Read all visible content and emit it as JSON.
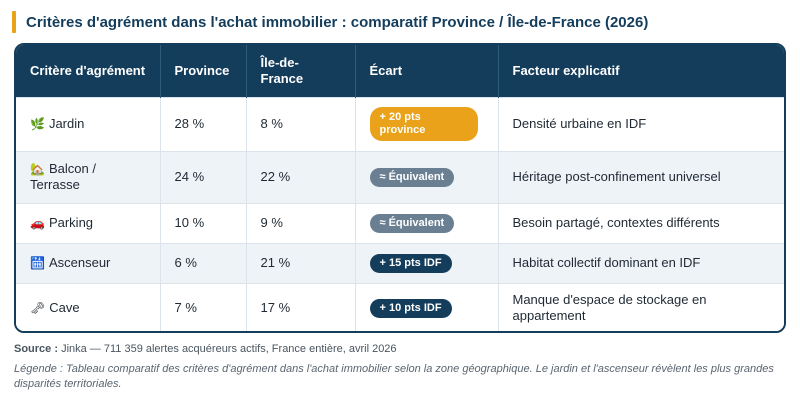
{
  "title": "Critères d'agrément dans l'achat immobilier : comparatif Province / Île-de-France (2026)",
  "headers": {
    "criterion": "Critère d'agrément",
    "province": "Province",
    "idf": "Île-de-France",
    "gap": "Écart",
    "factor": "Facteur explicatif"
  },
  "rows": [
    {
      "icon": "🌿",
      "icon_name": "herb-icon",
      "criterion": "Jardin",
      "province": "28 %",
      "idf": "8 %",
      "gap": "+ 20 pts province",
      "gap_color": "#e9a21a",
      "factor": "Densité urbaine en IDF"
    },
    {
      "icon": "🏡",
      "icon_name": "house-garden-icon",
      "criterion": "Balcon / Terrasse",
      "province": "24 %",
      "idf": "22 %",
      "gap": "≈ Équivalent",
      "gap_color": "#6a7f92",
      "factor": "Héritage post-confinement universel"
    },
    {
      "icon": "🚗",
      "icon_name": "car-icon",
      "criterion": "Parking",
      "province": "10 %",
      "idf": "9 %",
      "gap": "≈ Équivalent",
      "gap_color": "#6a7f92",
      "factor": "Besoin partagé, contextes différents"
    },
    {
      "icon": "🛗",
      "icon_name": "elevator-icon",
      "criterion": "Ascenseur",
      "province": "6 %",
      "idf": "21 %",
      "gap": "+ 15 pts IDF",
      "gap_color": "#143d5c",
      "factor": "Habitat collectif dominant en IDF"
    },
    {
      "icon": "🗝",
      "icon_name": "key-icon",
      "criterion": "Cave",
      "province": "7 %",
      "idf": "17 %",
      "gap": "+ 10 pts IDF",
      "gap_color": "#143d5c",
      "factor": "Manque d'espace de stockage en appartement"
    }
  ],
  "source_label": "Source :",
  "source_text": " Jinka — 711 359 alertes acquéreurs actifs, France entière, avril 2026",
  "legend": "Légende : Tableau comparatif des critères d'agrément dans l'achat immobilier selon la zone géographique. Le jardin et l'ascenseur révèlent les plus grandes disparités territoriales."
}
